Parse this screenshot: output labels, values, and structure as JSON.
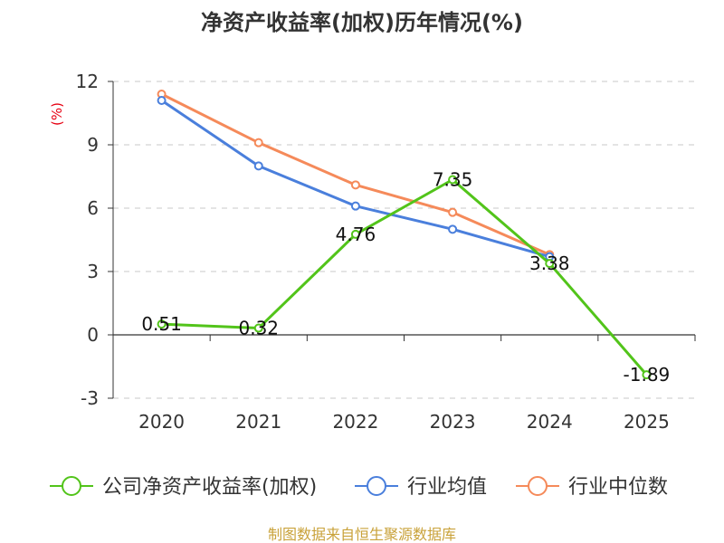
{
  "chart_data": {
    "type": "line",
    "title": "净资产收益率(加权)历年情况(%)",
    "ylabel": "(%)",
    "categories": [
      "2020",
      "2021",
      "2022",
      "2023",
      "2024",
      "2025"
    ],
    "ylim": [
      -3,
      12
    ],
    "yticks": [
      -3,
      0,
      3,
      6,
      9,
      12
    ],
    "ytick_labels": [
      "-3",
      "0",
      "3",
      "6",
      "9",
      "12"
    ],
    "grid": true,
    "legend_position": "bottom",
    "series": [
      {
        "name": "公司净资产收益率(加权)",
        "color": "#52c41a",
        "values": [
          0.51,
          0.32,
          4.76,
          7.35,
          3.38,
          -1.89
        ],
        "labels": [
          "0.51",
          "0.32",
          "4.76",
          "7.35",
          "3.38",
          "-1.89"
        ]
      },
      {
        "name": "行业均值",
        "color": "#4a7fdc",
        "values": [
          11.1,
          8.0,
          6.1,
          5.0,
          3.7,
          null
        ]
      },
      {
        "name": "行业中位数",
        "color": "#f58a5a",
        "values": [
          11.4,
          9.1,
          7.1,
          5.8,
          3.8,
          null
        ]
      }
    ]
  },
  "source": "制图数据来自恒生聚源数据库"
}
